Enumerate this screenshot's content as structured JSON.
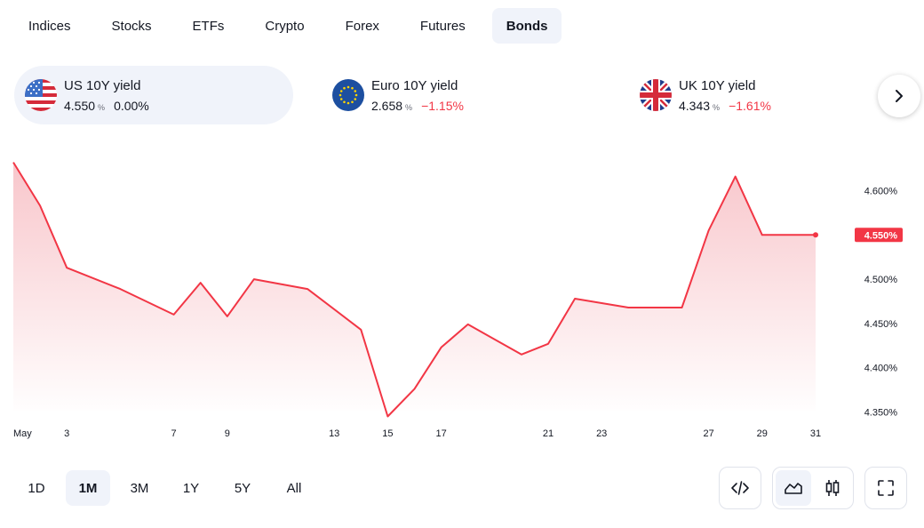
{
  "tabs": [
    {
      "label": "Indices",
      "active": false
    },
    {
      "label": "Stocks",
      "active": false
    },
    {
      "label": "ETFs",
      "active": false
    },
    {
      "label": "Crypto",
      "active": false
    },
    {
      "label": "Forex",
      "active": false
    },
    {
      "label": "Futures",
      "active": false
    },
    {
      "label": "Bonds",
      "active": true
    }
  ],
  "cards": [
    {
      "name": "US 10Y yield",
      "value": "4.550",
      "unit": "%",
      "change": "0.00%",
      "flag": "us-flag-icon"
    },
    {
      "name": "Euro 10Y yield",
      "value": "2.658",
      "unit": "%",
      "change": "−1.15%",
      "flag": "eu-flag-icon"
    },
    {
      "name": "UK 10Y yield",
      "value": "4.343",
      "unit": "%",
      "change": "−1.61%",
      "flag": "uk-flag-icon"
    }
  ],
  "next_icon": "chevron-right-icon",
  "chart_data": {
    "type": "area",
    "x": [
      1,
      2,
      3,
      4,
      5,
      6,
      7,
      8,
      9,
      10,
      11,
      12,
      13,
      14,
      15,
      16,
      17,
      18,
      19,
      20,
      21,
      22,
      23,
      24,
      25,
      26,
      27,
      28,
      29,
      30,
      31
    ],
    "x_tick_labels": [
      {
        "x": 1,
        "label": "May"
      },
      {
        "x": 3,
        "label": "3"
      },
      {
        "x": 7,
        "label": "7"
      },
      {
        "x": 9,
        "label": "9"
      },
      {
        "x": 13,
        "label": "13"
      },
      {
        "x": 15,
        "label": "15"
      },
      {
        "x": 17,
        "label": "17"
      },
      {
        "x": 21,
        "label": "21"
      },
      {
        "x": 23,
        "label": "23"
      },
      {
        "x": 27,
        "label": "27"
      },
      {
        "x": 29,
        "label": "29"
      },
      {
        "x": 31,
        "label": "31"
      }
    ],
    "points": [
      {
        "x": 1,
        "y": 4.632
      },
      {
        "x": 2,
        "y": 4.583
      },
      {
        "x": 3,
        "y": 4.513
      },
      {
        "x": 5,
        "y": 4.489
      },
      {
        "x": 7,
        "y": 4.46
      },
      {
        "x": 8,
        "y": 4.496
      },
      {
        "x": 9,
        "y": 4.458
      },
      {
        "x": 10,
        "y": 4.5
      },
      {
        "x": 12,
        "y": 4.489
      },
      {
        "x": 14,
        "y": 4.443
      },
      {
        "x": 15,
        "y": 4.345
      },
      {
        "x": 16,
        "y": 4.376
      },
      {
        "x": 17,
        "y": 4.423
      },
      {
        "x": 18,
        "y": 4.449
      },
      {
        "x": 20,
        "y": 4.415
      },
      {
        "x": 21,
        "y": 4.427
      },
      {
        "x": 22,
        "y": 4.478
      },
      {
        "x": 24,
        "y": 4.468
      },
      {
        "x": 26,
        "y": 4.468
      },
      {
        "x": 27,
        "y": 4.555
      },
      {
        "x": 28,
        "y": 4.616
      },
      {
        "x": 29,
        "y": 4.55
      },
      {
        "x": 31,
        "y": 4.55
      }
    ],
    "y_ticks": [
      "4.350%",
      "4.400%",
      "4.450%",
      "4.500%",
      "4.550%",
      "4.600%"
    ],
    "ylim": [
      4.35,
      4.6
    ],
    "last_value_label": "4.550%",
    "colors": {
      "line": "#f23645",
      "fill_top": "#f8c6cb",
      "fill_bottom": "#ffffff"
    }
  },
  "ranges": [
    {
      "label": "1D",
      "active": false
    },
    {
      "label": "1M",
      "active": true
    },
    {
      "label": "3M",
      "active": false
    },
    {
      "label": "1Y",
      "active": false
    },
    {
      "label": "5Y",
      "active": false
    },
    {
      "label": "All",
      "active": false
    }
  ],
  "tools": {
    "embed_icon": "code-icon",
    "area_icon": "area-chart-icon",
    "candle_icon": "candlestick-icon",
    "fullscreen_icon": "fullscreen-icon"
  }
}
